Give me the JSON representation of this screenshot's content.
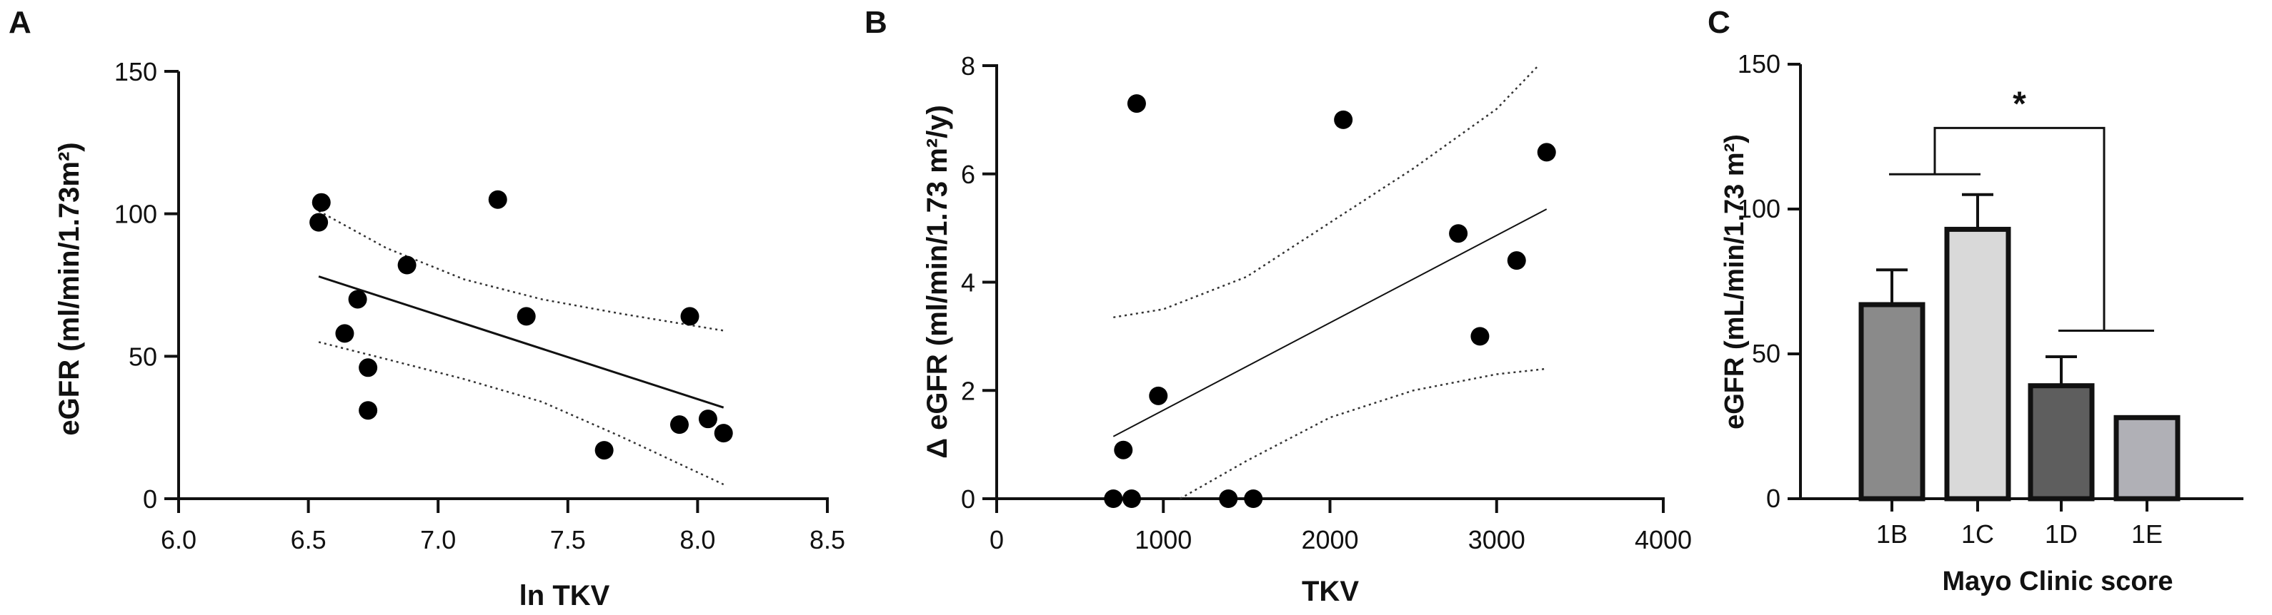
{
  "chart_data": [
    {
      "panel": "A",
      "type": "scatter",
      "xlabel": "ln TKV",
      "ylabel": "eGFR (ml/min/1.73m²)",
      "xlim": [
        6.0,
        8.5
      ],
      "ylim": [
        0,
        150
      ],
      "x_ticks": [
        "6.0",
        "6.5",
        "7.0",
        "7.5",
        "8.0",
        "8.5"
      ],
      "y_ticks": [
        "0",
        "50",
        "100",
        "150"
      ],
      "points": [
        {
          "x": 6.55,
          "y": 104
        },
        {
          "x": 6.54,
          "y": 97
        },
        {
          "x": 6.69,
          "y": 70
        },
        {
          "x": 6.64,
          "y": 58
        },
        {
          "x": 6.73,
          "y": 46
        },
        {
          "x": 6.73,
          "y": 31
        },
        {
          "x": 6.88,
          "y": 82
        },
        {
          "x": 7.23,
          "y": 105
        },
        {
          "x": 7.34,
          "y": 64
        },
        {
          "x": 7.64,
          "y": 17
        },
        {
          "x": 7.93,
          "y": 26
        },
        {
          "x": 7.97,
          "y": 64
        },
        {
          "x": 8.04,
          "y": 28
        },
        {
          "x": 8.1,
          "y": 23
        }
      ],
      "fit_line": {
        "x": [
          6.54,
          8.1
        ],
        "y": [
          78,
          32
        ]
      },
      "ci_upper": {
        "x": [
          6.54,
          6.8,
          7.1,
          7.4,
          7.7,
          8.1
        ],
        "y": [
          101,
          88,
          77,
          70,
          65,
          59
        ]
      },
      "ci_lower": {
        "x": [
          6.54,
          6.8,
          7.1,
          7.4,
          7.7,
          8.1
        ],
        "y": [
          55,
          49,
          42,
          34,
          22,
          5
        ]
      }
    },
    {
      "panel": "B",
      "type": "scatter",
      "xlabel": "TKV",
      "ylabel": "Δ eGFR (ml/min/1.73 m²/y)",
      "xlim": [
        0,
        4000
      ],
      "ylim": [
        0,
        8
      ],
      "x_ticks": [
        "0",
        "1000",
        "2000",
        "3000",
        "4000"
      ],
      "y_ticks": [
        "0",
        "2",
        "4",
        "6",
        "8"
      ],
      "points": [
        {
          "x": 700,
          "y": 0
        },
        {
          "x": 760,
          "y": 0.9
        },
        {
          "x": 810,
          "y": 0
        },
        {
          "x": 840,
          "y": 7.3
        },
        {
          "x": 970,
          "y": 1.9
        },
        {
          "x": 1390,
          "y": 0
        },
        {
          "x": 1540,
          "y": 0
        },
        {
          "x": 2080,
          "y": 7.0
        },
        {
          "x": 2770,
          "y": 4.9
        },
        {
          "x": 2900,
          "y": 3.0
        },
        {
          "x": 3120,
          "y": 4.4
        },
        {
          "x": 3300,
          "y": 6.4
        }
      ],
      "fit_line": {
        "x": [
          700,
          3300
        ],
        "y": [
          1.15,
          5.35
        ]
      },
      "ci_upper": {
        "x": [
          700,
          1000,
          1500,
          2000,
          2500,
          3000,
          3250
        ],
        "y": [
          3.35,
          3.5,
          4.1,
          5.1,
          6.1,
          7.2,
          8.0
        ]
      },
      "ci_lower": {
        "x": [
          1100,
          1500,
          2000,
          2500,
          3000,
          3300
        ],
        "y": [
          0.0,
          0.7,
          1.5,
          2.0,
          2.3,
          2.4
        ]
      }
    },
    {
      "panel": "C",
      "type": "bar",
      "xlabel": "Mayo Clinic score",
      "ylabel": "eGFR (mL/min/1.73 m²)",
      "ylim": [
        0,
        150
      ],
      "y_ticks": [
        "0",
        "50",
        "100",
        "150"
      ],
      "categories": [
        "1B",
        "1C",
        "1D",
        "1E"
      ],
      "values": [
        67,
        93,
        39,
        28
      ],
      "error_upper": [
        79,
        105,
        49,
        null
      ],
      "bar_colors": [
        "#8a8a8a",
        "#d9d9d9",
        "#5e5e5e",
        "#b0b0b6"
      ],
      "significance": {
        "label": "*",
        "left_group": [
          "1B",
          "1C"
        ],
        "right_group": [
          "1D",
          "1E"
        ]
      }
    }
  ]
}
